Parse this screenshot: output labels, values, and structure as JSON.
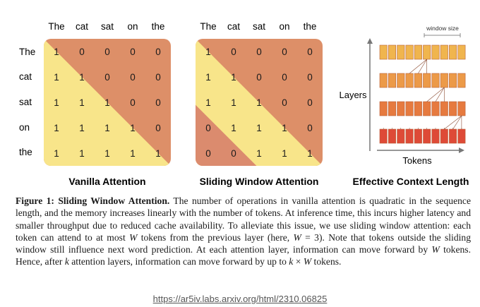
{
  "tokens": [
    "The",
    "cat",
    "sat",
    "on",
    "the"
  ],
  "vanilla": {
    "title": "Vanilla Attention",
    "matrix": [
      [
        1,
        0,
        0,
        0,
        0
      ],
      [
        1,
        1,
        0,
        0,
        0
      ],
      [
        1,
        1,
        1,
        0,
        0
      ],
      [
        1,
        1,
        1,
        1,
        0
      ],
      [
        1,
        1,
        1,
        1,
        1
      ]
    ]
  },
  "sliding": {
    "title": "Sliding Window Attention",
    "matrix": [
      [
        1,
        0,
        0,
        0,
        0
      ],
      [
        1,
        1,
        0,
        0,
        0
      ],
      [
        1,
        1,
        1,
        0,
        0
      ],
      [
        0,
        1,
        1,
        1,
        0
      ],
      [
        0,
        0,
        1,
        1,
        1
      ]
    ]
  },
  "context": {
    "title": "Effective Context Length",
    "window_label": "window size",
    "y_label": "Layers",
    "x_label": "Tokens",
    "layers": 4,
    "blocks_per_layer": 10,
    "layer_colors": [
      "#f0b54e",
      "#ec9a48",
      "#e67a3f",
      "#de4a37"
    ]
  },
  "colors": {
    "lower": "#f8e58a",
    "upper": "#dd8f68",
    "outside": "#db8b6e"
  },
  "caption": {
    "lead": "Figure 1: Sliding Window Attention.",
    "p1": " The number of operations in vanilla attention is quadratic in the sequence length, and the memory increases linearly with the number of tokens. At inference time, this incurs higher latency and smaller throughput due to reduced cache availability. To alleviate this issue, we use sliding window attention: each token can attend to at most ",
    "w1": "W",
    "p2": " tokens from the previous layer (here, ",
    "w2": "W",
    "p3": " = 3). Note that tokens outside the sliding window still influence next word prediction. At each attention layer, information can move forward by ",
    "w3": "W",
    "p4": " tokens. Hence, after ",
    "k1": "k",
    "p5": " attention layers, information can move forward by up to ",
    "k2": "k",
    "times": " × ",
    "w4": "W",
    "p6": " tokens."
  },
  "source": "https://ar5iv.labs.arxiv.org/html/2310.06825"
}
